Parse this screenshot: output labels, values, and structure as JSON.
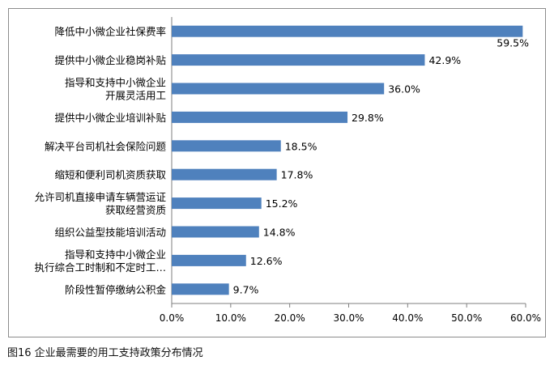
{
  "chart_data": {
    "type": "bar",
    "orientation": "horizontal",
    "categories": [
      [
        "降低中小微企业社保费率"
      ],
      [
        "提供中小微企业稳岗补贴"
      ],
      [
        "指导和支持中小微企业",
        "开展灵活用工"
      ],
      [
        "提供中小微企业培训补贴"
      ],
      [
        "解决平台司机社会保险问题"
      ],
      [
        "缩短和便利司机资质获取"
      ],
      [
        "允许司机直接申请车辆营运证",
        "获取经营资质"
      ],
      [
        "组织公益型技能培训活动"
      ],
      [
        "指导和支持中小微企业",
        "执行综合工时制和不定时工…"
      ],
      [
        "阶段性暂停缴纳公积金"
      ]
    ],
    "values": [
      59.5,
      42.9,
      36.0,
      29.8,
      18.5,
      17.8,
      15.2,
      14.8,
      12.6,
      9.7
    ],
    "data_labels": [
      "59.5%",
      "42.9%",
      "36.0%",
      "29.8%",
      "18.5%",
      "17.8%",
      "15.2%",
      "14.8%",
      "12.6%",
      "9.7%"
    ],
    "xlim": [
      0,
      60
    ],
    "x_ticks": [
      0,
      10,
      20,
      30,
      40,
      50,
      60
    ],
    "x_tick_labels": [
      "0.0%",
      "10.0%",
      "20.0%",
      "30.0%",
      "40.0%",
      "50.0%",
      "60.0%"
    ],
    "grid": false,
    "bar_color": "#4f81bd"
  },
  "caption": "图16 企业最需要的用工支持政策分布情况"
}
